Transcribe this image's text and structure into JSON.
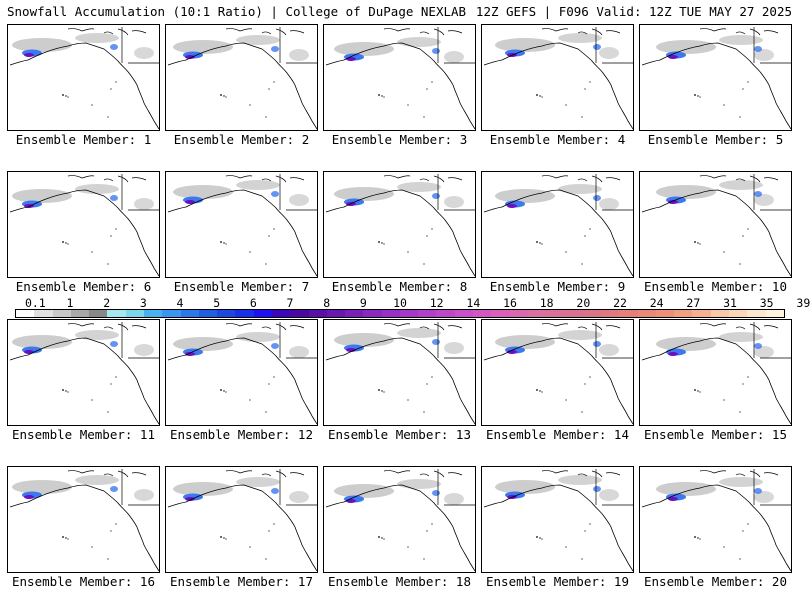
{
  "header": {
    "title": "Snowfall Accumulation (10:1 Ratio) | College of DuPage NEXLAB",
    "valid": "12Z GEFS | F096 Valid: 12Z TUE MAY 27 2025"
  },
  "panels": [
    {
      "label": "Ensemble Member: 1"
    },
    {
      "label": "Ensemble Member: 2"
    },
    {
      "label": "Ensemble Member: 3"
    },
    {
      "label": "Ensemble Member: 4"
    },
    {
      "label": "Ensemble Member: 5"
    },
    {
      "label": "Ensemble Member: 6"
    },
    {
      "label": "Ensemble Member: 7"
    },
    {
      "label": "Ensemble Member: 8"
    },
    {
      "label": "Ensemble Member: 9"
    },
    {
      "label": "Ensemble Member: 10"
    },
    {
      "label": "Ensemble Member: 11"
    },
    {
      "label": "Ensemble Member: 12"
    },
    {
      "label": "Ensemble Member: 13"
    },
    {
      "label": "Ensemble Member: 14"
    },
    {
      "label": "Ensemble Member: 15"
    },
    {
      "label": "Ensemble Member: 16"
    },
    {
      "label": "Ensemble Member: 17"
    },
    {
      "label": "Ensemble Member: 18"
    },
    {
      "label": "Ensemble Member: 19"
    },
    {
      "label": "Ensemble Member: 20"
    }
  ],
  "legend": {
    "labels": [
      "0.1",
      "1",
      "2",
      "3",
      "4",
      "5",
      "6",
      "7",
      "8",
      "9",
      "10",
      "12",
      "14",
      "16",
      "18",
      "20",
      "22",
      "24",
      "27",
      "31",
      "35",
      "39"
    ],
    "colors": [
      "#ffffff",
      "#e0e0e0",
      "#c8c8c8",
      "#a8a8a8",
      "#888888",
      "#a6e8f0",
      "#7ad8ec",
      "#4ab0f0",
      "#3c96f0",
      "#2c78e8",
      "#2060e0",
      "#1c48e0",
      "#1830e8",
      "#2010f0",
      "#3a08b8",
      "#4a08a0",
      "#5a10a8",
      "#6818b0",
      "#7a20b8",
      "#8a28c0",
      "#9830c8",
      "#a638c8",
      "#b040c8",
      "#bc48c8",
      "#c850c8",
      "#d058c0",
      "#d860b8",
      "#d868b0",
      "#d870a0",
      "#d87098",
      "#d87090",
      "#d87488",
      "#e07880",
      "#e48078",
      "#e88878",
      "#ec9078",
      "#f0a080",
      "#f4b090",
      "#f8c8a8",
      "#fad8b8",
      "#fce8cc",
      "#fff4e0"
    ]
  },
  "colors": {
    "coast": "#000000",
    "snow_light": "#c8c8c8",
    "snow_blue": "#3c78f0",
    "snow_purple": "#6a10c0"
  }
}
